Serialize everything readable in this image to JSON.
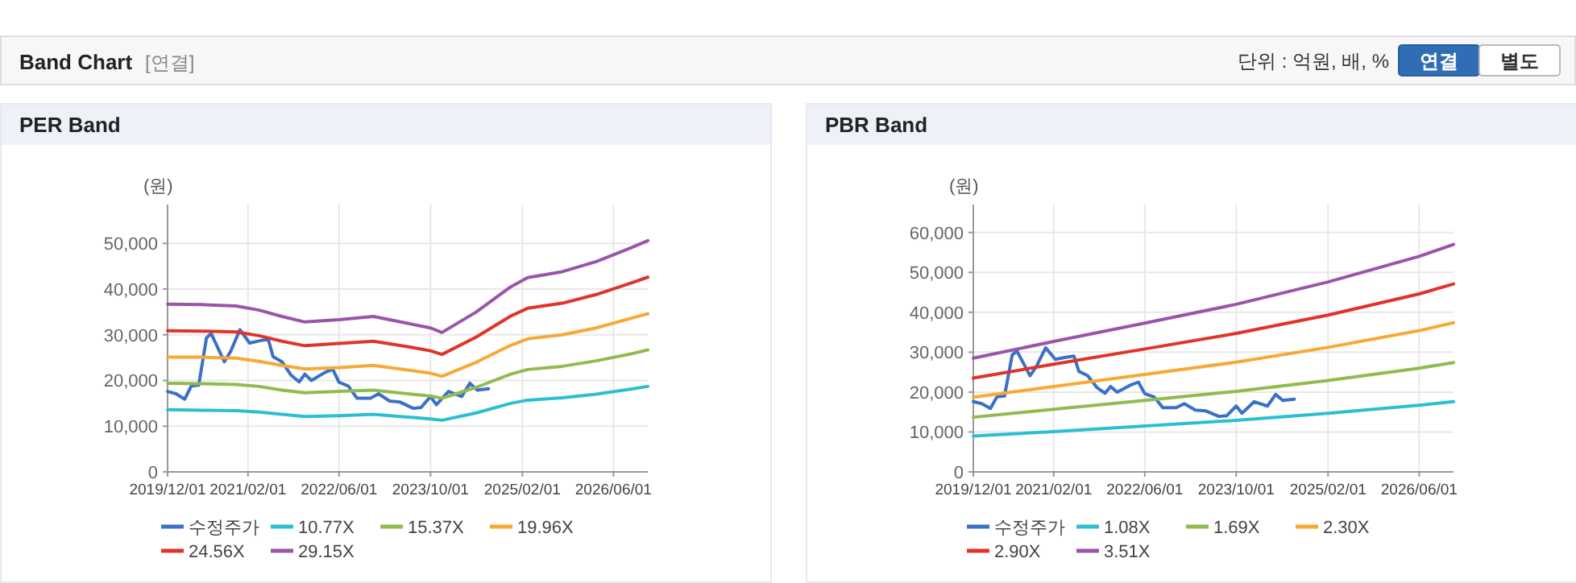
{
  "chart_data": [
    {
      "type": "line",
      "title": "PER Band",
      "ylabel": "(원)",
      "annotations": [
        "Band Chart",
        "[연결]",
        "단위 : 억원, 배, %",
        "연결",
        "별도"
      ],
      "xlim": [
        "2019-12-01",
        "2026-12-01"
      ],
      "xticks": [
        {
          "value": "2019-12-01",
          "label": "2019/12/01"
        },
        {
          "value": "2021-02-01",
          "label": "2021/02/01"
        },
        {
          "value": "2022-06-01",
          "label": "2022/06/01"
        },
        {
          "value": "2023-10-01",
          "label": "2023/10/01"
        },
        {
          "value": "2025-02-01",
          "label": "2025/02/01"
        },
        {
          "value": "2026-06-01",
          "label": "2026/06/01"
        }
      ],
      "ylim": [
        0,
        58500
      ],
      "yticks": [
        0,
        {
          "value": 10000,
          "label": "10,000"
        },
        {
          "value": 20000,
          "label": "20,000"
        },
        {
          "value": 30000,
          "label": "30,000"
        },
        {
          "value": 40000,
          "label": "40,000"
        },
        {
          "value": 50000,
          "label": "50,000"
        }
      ],
      "grid": true,
      "legend": "bottom",
      "series": [
        {
          "name": "수정주가",
          "color": "#3a70c8",
          "x": [
            "2019-12-01",
            "2020-01-15",
            "2020-03-01",
            "2020-04-05",
            "2020-05-15",
            "2020-06-25",
            "2020-07-20",
            "2020-09-28",
            "2020-11-01",
            "2020-12-20",
            "2021-02-10",
            "2021-04-05",
            "2021-05-20",
            "2021-06-15",
            "2021-08-01",
            "2021-09-20",
            "2021-11-01",
            "2021-12-01",
            "2022-01-05",
            "2022-03-15",
            "2022-04-28",
            "2022-06-01",
            "2022-07-20",
            "2022-09-05",
            "2022-11-15",
            "2022-12-28",
            "2023-02-25",
            "2023-04-20",
            "2023-07-01",
            "2023-08-12",
            "2023-10-01",
            "2023-11-01",
            "2024-01-05",
            "2024-03-15",
            "2024-04-28",
            "2024-06-05",
            "2024-08-05"
          ],
          "values": [
            17600,
            17100,
            15900,
            18800,
            19000,
            29300,
            30300,
            24100,
            26400,
            31100,
            28200,
            28700,
            29000,
            25200,
            24100,
            21100,
            19700,
            21400,
            20000,
            21700,
            22500,
            19600,
            18800,
            16100,
            16100,
            17100,
            15500,
            15300,
            13900,
            14100,
            16500,
            14700,
            17600,
            16500,
            19400,
            17900,
            18200
          ]
        },
        {
          "name": "10.77X",
          "color": "#2bbfd1",
          "x": [
            "2019-12-01",
            "2020-06-01",
            "2020-12-01",
            "2021-04-01",
            "2021-08-01",
            "2021-12-01",
            "2022-06-01",
            "2022-12-01",
            "2023-06-01",
            "2023-10-01",
            "2023-12-01",
            "2024-06-01",
            "2024-12-01",
            "2025-03-01",
            "2025-09-01",
            "2026-03-01",
            "2026-09-01",
            "2026-12-01"
          ],
          "values": [
            13600,
            13500,
            13400,
            13100,
            12600,
            12100,
            12300,
            12600,
            12000,
            11600,
            11300,
            12900,
            15000,
            15700,
            16200,
            17000,
            18100,
            18700
          ]
        },
        {
          "name": "15.37X",
          "color": "#8fbc4f",
          "x": [
            "2019-12-01",
            "2020-06-01",
            "2020-12-01",
            "2021-04-01",
            "2021-08-01",
            "2021-12-01",
            "2022-06-01",
            "2022-12-01",
            "2023-06-01",
            "2023-10-01",
            "2023-12-01",
            "2024-06-01",
            "2024-12-01",
            "2025-03-01",
            "2025-09-01",
            "2026-03-01",
            "2026-09-01",
            "2026-12-01"
          ],
          "values": [
            19400,
            19300,
            19100,
            18700,
            17900,
            17300,
            17600,
            17900,
            17100,
            16600,
            16100,
            18500,
            21400,
            22400,
            23100,
            24300,
            25800,
            26700
          ]
        },
        {
          "name": "19.96X",
          "color": "#f7a935",
          "x": [
            "2019-12-01",
            "2020-06-01",
            "2020-12-01",
            "2021-04-01",
            "2021-08-01",
            "2021-12-01",
            "2022-06-01",
            "2022-12-01",
            "2023-06-01",
            "2023-10-01",
            "2023-12-01",
            "2024-06-01",
            "2024-12-01",
            "2025-03-01",
            "2025-09-01",
            "2026-03-01",
            "2026-09-01",
            "2026-12-01"
          ],
          "values": [
            25100,
            25100,
            24900,
            24200,
            23300,
            22500,
            22800,
            23300,
            22300,
            21600,
            20900,
            24000,
            27700,
            29100,
            30000,
            31500,
            33600,
            34600
          ]
        },
        {
          "name": "24.56X",
          "color": "#e0342a",
          "x": [
            "2019-12-01",
            "2020-06-01",
            "2020-12-01",
            "2021-04-01",
            "2021-08-01",
            "2021-12-01",
            "2022-06-01",
            "2022-12-01",
            "2023-06-01",
            "2023-10-01",
            "2023-12-01",
            "2024-06-01",
            "2024-12-01",
            "2025-03-01",
            "2025-09-01",
            "2026-03-01",
            "2026-09-01",
            "2026-12-01"
          ],
          "values": [
            30900,
            30800,
            30600,
            29800,
            28600,
            27600,
            28100,
            28600,
            27400,
            26500,
            25700,
            29500,
            34100,
            35800,
            36900,
            38800,
            41300,
            42600
          ]
        },
        {
          "name": "29.15X",
          "color": "#9a55a8",
          "x": [
            "2019-12-01",
            "2020-06-01",
            "2020-12-01",
            "2021-04-01",
            "2021-08-01",
            "2021-12-01",
            "2022-06-01",
            "2022-12-01",
            "2023-06-01",
            "2023-10-01",
            "2023-12-01",
            "2024-06-01",
            "2024-12-01",
            "2025-03-01",
            "2025-09-01",
            "2026-03-01",
            "2026-09-01",
            "2026-12-01"
          ],
          "values": [
            36700,
            36600,
            36300,
            35400,
            34000,
            32800,
            33300,
            34000,
            32500,
            31500,
            30500,
            35000,
            40500,
            42500,
            43800,
            46000,
            49000,
            50600
          ]
        }
      ]
    },
    {
      "type": "line",
      "title": "PBR Band",
      "ylabel": "(원)",
      "xlim": [
        "2019-12-01",
        "2026-12-01"
      ],
      "xticks": [
        {
          "value": "2019-12-01",
          "label": "2019/12/01"
        },
        {
          "value": "2021-02-01",
          "label": "2021/02/01"
        },
        {
          "value": "2022-06-01",
          "label": "2022/06/01"
        },
        {
          "value": "2023-10-01",
          "label": "2023/10/01"
        },
        {
          "value": "2025-02-01",
          "label": "2025/02/01"
        },
        {
          "value": "2026-06-01",
          "label": "2026/06/01"
        }
      ],
      "ylim": [
        0,
        67000
      ],
      "yticks": [
        0,
        {
          "value": 10000,
          "label": "10,000"
        },
        {
          "value": 20000,
          "label": "20,000"
        },
        {
          "value": 30000,
          "label": "30,000"
        },
        {
          "value": 40000,
          "label": "40,000"
        },
        {
          "value": 50000,
          "label": "50,000"
        },
        {
          "value": 60000,
          "label": "60,000"
        }
      ],
      "grid": true,
      "legend": "bottom",
      "series": [
        {
          "name": "수정주가",
          "color": "#3a70c8",
          "x": [
            "2019-12-01",
            "2020-01-15",
            "2020-03-01",
            "2020-04-05",
            "2020-05-15",
            "2020-06-25",
            "2020-07-20",
            "2020-09-28",
            "2020-11-01",
            "2020-12-20",
            "2021-02-10",
            "2021-04-05",
            "2021-05-20",
            "2021-06-15",
            "2021-08-01",
            "2021-09-20",
            "2021-11-01",
            "2021-12-01",
            "2022-01-05",
            "2022-03-15",
            "2022-04-28",
            "2022-06-01",
            "2022-07-20",
            "2022-09-05",
            "2022-11-15",
            "2022-12-28",
            "2023-02-25",
            "2023-04-20",
            "2023-07-01",
            "2023-08-12",
            "2023-10-01",
            "2023-11-01",
            "2024-01-05",
            "2024-03-15",
            "2024-04-28",
            "2024-06-05",
            "2024-08-05"
          ],
          "values": [
            17600,
            17100,
            15900,
            18800,
            19000,
            29300,
            30300,
            24100,
            26400,
            31100,
            28200,
            28700,
            29000,
            25200,
            24100,
            21100,
            19700,
            21400,
            20000,
            21700,
            22500,
            19600,
            18800,
            16100,
            16100,
            17100,
            15500,
            15300,
            13900,
            14100,
            16500,
            14700,
            17600,
            16500,
            19400,
            17900,
            18200
          ]
        },
        {
          "name": "1.08X",
          "color": "#2bbfd1",
          "x": [
            "2019-12-01",
            "2021-02-01",
            "2022-06-01",
            "2023-10-01",
            "2025-02-01",
            "2026-06-01",
            "2026-12-01"
          ],
          "values": [
            9000,
            10100,
            11500,
            12900,
            14700,
            16700,
            17600
          ]
        },
        {
          "name": "1.69X",
          "color": "#8fbc4f",
          "x": [
            "2019-12-01",
            "2021-02-01",
            "2022-06-01",
            "2023-10-01",
            "2025-02-01",
            "2026-06-01",
            "2026-12-01"
          ],
          "values": [
            13700,
            15700,
            17900,
            20200,
            22900,
            26000,
            27400
          ]
        },
        {
          "name": "2.30X",
          "color": "#f7a935",
          "x": [
            "2019-12-01",
            "2021-02-01",
            "2022-06-01",
            "2023-10-01",
            "2025-02-01",
            "2026-06-01",
            "2026-12-01"
          ],
          "values": [
            18700,
            21400,
            24400,
            27500,
            31200,
            35400,
            37400
          ]
        },
        {
          "name": "2.90X",
          "color": "#e0342a",
          "x": [
            "2019-12-01",
            "2021-02-01",
            "2022-06-01",
            "2023-10-01",
            "2025-02-01",
            "2026-06-01",
            "2026-12-01"
          ],
          "values": [
            23500,
            27000,
            30800,
            34700,
            39300,
            44600,
            47100
          ]
        },
        {
          "name": "3.51X",
          "color": "#9a55a8",
          "x": [
            "2019-12-01",
            "2021-02-01",
            "2022-06-01",
            "2023-10-01",
            "2025-02-01",
            "2026-06-01",
            "2026-12-01"
          ],
          "values": [
            28500,
            32700,
            37300,
            42000,
            47600,
            54000,
            57000
          ]
        }
      ]
    }
  ]
}
